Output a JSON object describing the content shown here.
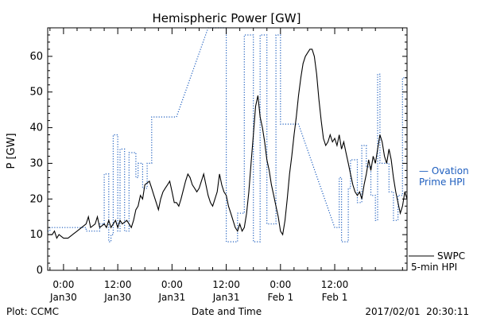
{
  "chart_data": {
    "type": "line",
    "title": "Hemispheric Power [GW]",
    "ylabel": "P [GW]",
    "xlabel": "Date and Time",
    "ylim": [
      0,
      68
    ],
    "xlim_hours": [
      -3.5,
      76
    ],
    "yticks": [
      0,
      10,
      20,
      30,
      40,
      50,
      60
    ],
    "xticks": [
      {
        "t": 0,
        "time": "0:00",
        "date": "Jan30"
      },
      {
        "t": 12,
        "time": "12:00",
        "date": "Jan30"
      },
      {
        "t": 24,
        "time": "0:00",
        "date": "Jan31"
      },
      {
        "t": 36,
        "time": "12:00",
        "date": "Jan31"
      },
      {
        "t": 48,
        "time": "0:00",
        "date": "Feb 1"
      },
      {
        "t": 60,
        "time": "12:00",
        "date": "Feb 1"
      }
    ],
    "series": [
      {
        "name": "SWPC 5-min HPI",
        "label_lines": [
          "SWPC",
          "5-min HPI"
        ],
        "color": "#000000",
        "style": "solid",
        "points": [
          [
            -3.5,
            10
          ],
          [
            -2.5,
            10
          ],
          [
            -2,
            11
          ],
          [
            -1.5,
            9
          ],
          [
            -1,
            10
          ],
          [
            0,
            9
          ],
          [
            1,
            9
          ],
          [
            2,
            10
          ],
          [
            3,
            11
          ],
          [
            4,
            12
          ],
          [
            5,
            13
          ],
          [
            5.5,
            15
          ],
          [
            6,
            12
          ],
          [
            7,
            13
          ],
          [
            7.5,
            15
          ],
          [
            8,
            12
          ],
          [
            9,
            13
          ],
          [
            9.5,
            12
          ],
          [
            10,
            14
          ],
          [
            10.5,
            12
          ],
          [
            11,
            13
          ],
          [
            11.5,
            14
          ],
          [
            12,
            12
          ],
          [
            12.5,
            14
          ],
          [
            13,
            13
          ],
          [
            14,
            14
          ],
          [
            15,
            12
          ],
          [
            15.5,
            14
          ],
          [
            16,
            17
          ],
          [
            16.5,
            18
          ],
          [
            17,
            21
          ],
          [
            17.5,
            20
          ],
          [
            18,
            24
          ],
          [
            19,
            25
          ],
          [
            19.5,
            23
          ],
          [
            20,
            21
          ],
          [
            20.5,
            19
          ],
          [
            21,
            17
          ],
          [
            21.5,
            20
          ],
          [
            22,
            22
          ],
          [
            22.5,
            23
          ],
          [
            23,
            24
          ],
          [
            23.5,
            25
          ],
          [
            24,
            22
          ],
          [
            24.5,
            19
          ],
          [
            25,
            19
          ],
          [
            25.5,
            18
          ],
          [
            26,
            20
          ],
          [
            27,
            25
          ],
          [
            27.5,
            27
          ],
          [
            28,
            26
          ],
          [
            28.5,
            24
          ],
          [
            29,
            23
          ],
          [
            29.5,
            22
          ],
          [
            30,
            23
          ],
          [
            30.5,
            25
          ],
          [
            31,
            27
          ],
          [
            31.5,
            24
          ],
          [
            32,
            21
          ],
          [
            32.5,
            19
          ],
          [
            33,
            18
          ],
          [
            34,
            22
          ],
          [
            34.5,
            27
          ],
          [
            35,
            24
          ],
          [
            35.5,
            22
          ],
          [
            36,
            21
          ],
          [
            36.5,
            18
          ],
          [
            37,
            16
          ],
          [
            37.5,
            14
          ],
          [
            38,
            12
          ],
          [
            38.5,
            11
          ],
          [
            39,
            13
          ],
          [
            39.5,
            11
          ],
          [
            40,
            12
          ],
          [
            40.5,
            16
          ],
          [
            41,
            22
          ],
          [
            41.5,
            30
          ],
          [
            42,
            38
          ],
          [
            42.5,
            46
          ],
          [
            43,
            49
          ],
          [
            43.5,
            43
          ],
          [
            44,
            40
          ],
          [
            44.5,
            36
          ],
          [
            45,
            31
          ],
          [
            45.5,
            28
          ],
          [
            46,
            24
          ],
          [
            46.5,
            21
          ],
          [
            47,
            18
          ],
          [
            47.5,
            15
          ],
          [
            48,
            11
          ],
          [
            48.5,
            10
          ],
          [
            49,
            14
          ],
          [
            49.5,
            20
          ],
          [
            50,
            27
          ],
          [
            50.5,
            32
          ],
          [
            51,
            38
          ],
          [
            51.5,
            43
          ],
          [
            52,
            49
          ],
          [
            52.5,
            54
          ],
          [
            53,
            58
          ],
          [
            53.5,
            60
          ],
          [
            54,
            61
          ],
          [
            54.5,
            62
          ],
          [
            55,
            62
          ],
          [
            55.5,
            60
          ],
          [
            56,
            55
          ],
          [
            56.5,
            48
          ],
          [
            57,
            42
          ],
          [
            57.5,
            37
          ],
          [
            58,
            35
          ],
          [
            58.5,
            36
          ],
          [
            59,
            38
          ],
          [
            59.5,
            36
          ],
          [
            60,
            37
          ],
          [
            60.5,
            35
          ],
          [
            61,
            38
          ],
          [
            61.5,
            34
          ],
          [
            62,
            36
          ],
          [
            62.5,
            33
          ],
          [
            63,
            30
          ],
          [
            63.5,
            27
          ],
          [
            64,
            24
          ],
          [
            64.5,
            22
          ],
          [
            65,
            21
          ],
          [
            65.5,
            22
          ],
          [
            66,
            20
          ],
          [
            66.5,
            24
          ],
          [
            67,
            27
          ],
          [
            67.5,
            31
          ],
          [
            68,
            28
          ],
          [
            68.5,
            32
          ],
          [
            69,
            30
          ],
          [
            69.5,
            34
          ],
          [
            70,
            38
          ],
          [
            70.5,
            36
          ],
          [
            71,
            32
          ],
          [
            71.5,
            30
          ],
          [
            72,
            34
          ],
          [
            72.5,
            31
          ],
          [
            73,
            26
          ],
          [
            73.5,
            22
          ],
          [
            74,
            19
          ],
          [
            74.5,
            16
          ],
          [
            75,
            18
          ],
          [
            75.5,
            22
          ],
          [
            76,
            20
          ]
        ]
      },
      {
        "name": "Ovation Prime HPI",
        "label_lines": [
          "— Ovation",
          "Prime HPI"
        ],
        "color": "#1f5fbf",
        "style": "dotted",
        "points": [
          [
            -3.5,
            11
          ],
          [
            -3,
            11
          ],
          [
            -3,
            12
          ],
          [
            5,
            12
          ],
          [
            5,
            11
          ],
          [
            8,
            11
          ],
          [
            8,
            13
          ],
          [
            9,
            13
          ],
          [
            9,
            27
          ],
          [
            10,
            27
          ],
          [
            10,
            8
          ],
          [
            10.5,
            8
          ],
          [
            10.5,
            10
          ],
          [
            11,
            10
          ],
          [
            11,
            38
          ],
          [
            12,
            38
          ],
          [
            12,
            11
          ],
          [
            12.5,
            11
          ],
          [
            12.5,
            34
          ],
          [
            13.5,
            34
          ],
          [
            13.5,
            11
          ],
          [
            14.5,
            11
          ],
          [
            14.5,
            33
          ],
          [
            16,
            33
          ],
          [
            16,
            26
          ],
          [
            16.5,
            26
          ],
          [
            16.5,
            30
          ],
          [
            17.5,
            30
          ],
          [
            17.5,
            23
          ],
          [
            18.5,
            23
          ],
          [
            18.5,
            30
          ],
          [
            19.5,
            30
          ],
          [
            19.5,
            43
          ],
          [
            25,
            43
          ],
          [
            32,
            68
          ],
          [
            36,
            68
          ],
          [
            36,
            8
          ],
          [
            38.5,
            8
          ],
          [
            38.5,
            16
          ],
          [
            40,
            16
          ],
          [
            40,
            66
          ],
          [
            42,
            66
          ],
          [
            42,
            8
          ],
          [
            43.5,
            8
          ],
          [
            43.5,
            66
          ],
          [
            45,
            66
          ],
          [
            45,
            13
          ],
          [
            47,
            13
          ],
          [
            47,
            66
          ],
          [
            48,
            66
          ],
          [
            48,
            41
          ],
          [
            52,
            41
          ],
          [
            60,
            12
          ],
          [
            61,
            12
          ],
          [
            61,
            26
          ],
          [
            61.5,
            26
          ],
          [
            61.5,
            8
          ],
          [
            63,
            8
          ],
          [
            63,
            23
          ],
          [
            63.5,
            23
          ],
          [
            63.5,
            31
          ],
          [
            65,
            31
          ],
          [
            65,
            19
          ],
          [
            66,
            19
          ],
          [
            66,
            35
          ],
          [
            67,
            35
          ],
          [
            67,
            29
          ],
          [
            68,
            29
          ],
          [
            68,
            21
          ],
          [
            69,
            21
          ],
          [
            69,
            14
          ],
          [
            69.5,
            14
          ],
          [
            69.5,
            55
          ],
          [
            70,
            55
          ],
          [
            70,
            30
          ],
          [
            72,
            30
          ],
          [
            72,
            22
          ],
          [
            73,
            22
          ],
          [
            73,
            14
          ],
          [
            74,
            14
          ],
          [
            74,
            21
          ],
          [
            75,
            21
          ],
          [
            75,
            54
          ],
          [
            76,
            54
          ]
        ]
      }
    ]
  },
  "footer": {
    "left": "Plot: CCMC",
    "center": "Date and Time",
    "right": "2017/02/01  20:30:11"
  }
}
